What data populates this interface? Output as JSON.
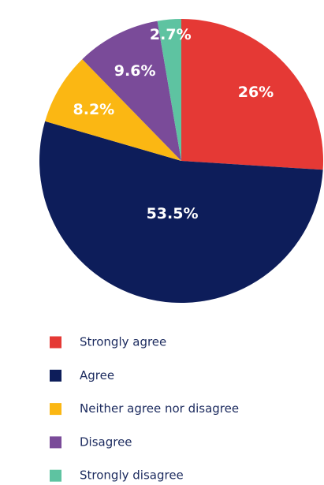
{
  "chart_data": {
    "type": "pie",
    "categories": [
      "Strongly agree",
      "Agree",
      "Neither agree nor disagree",
      "Disagree",
      "Strongly disagree"
    ],
    "values": [
      26,
      53.5,
      8.2,
      9.6,
      2.7
    ],
    "value_labels": [
      "26%",
      "53.5%",
      "8.2%",
      "9.6%",
      "2.7%"
    ],
    "colors": [
      "#e53935",
      "#0d1d5a",
      "#fbb713",
      "#7a4b99",
      "#5ec3a1"
    ]
  }
}
